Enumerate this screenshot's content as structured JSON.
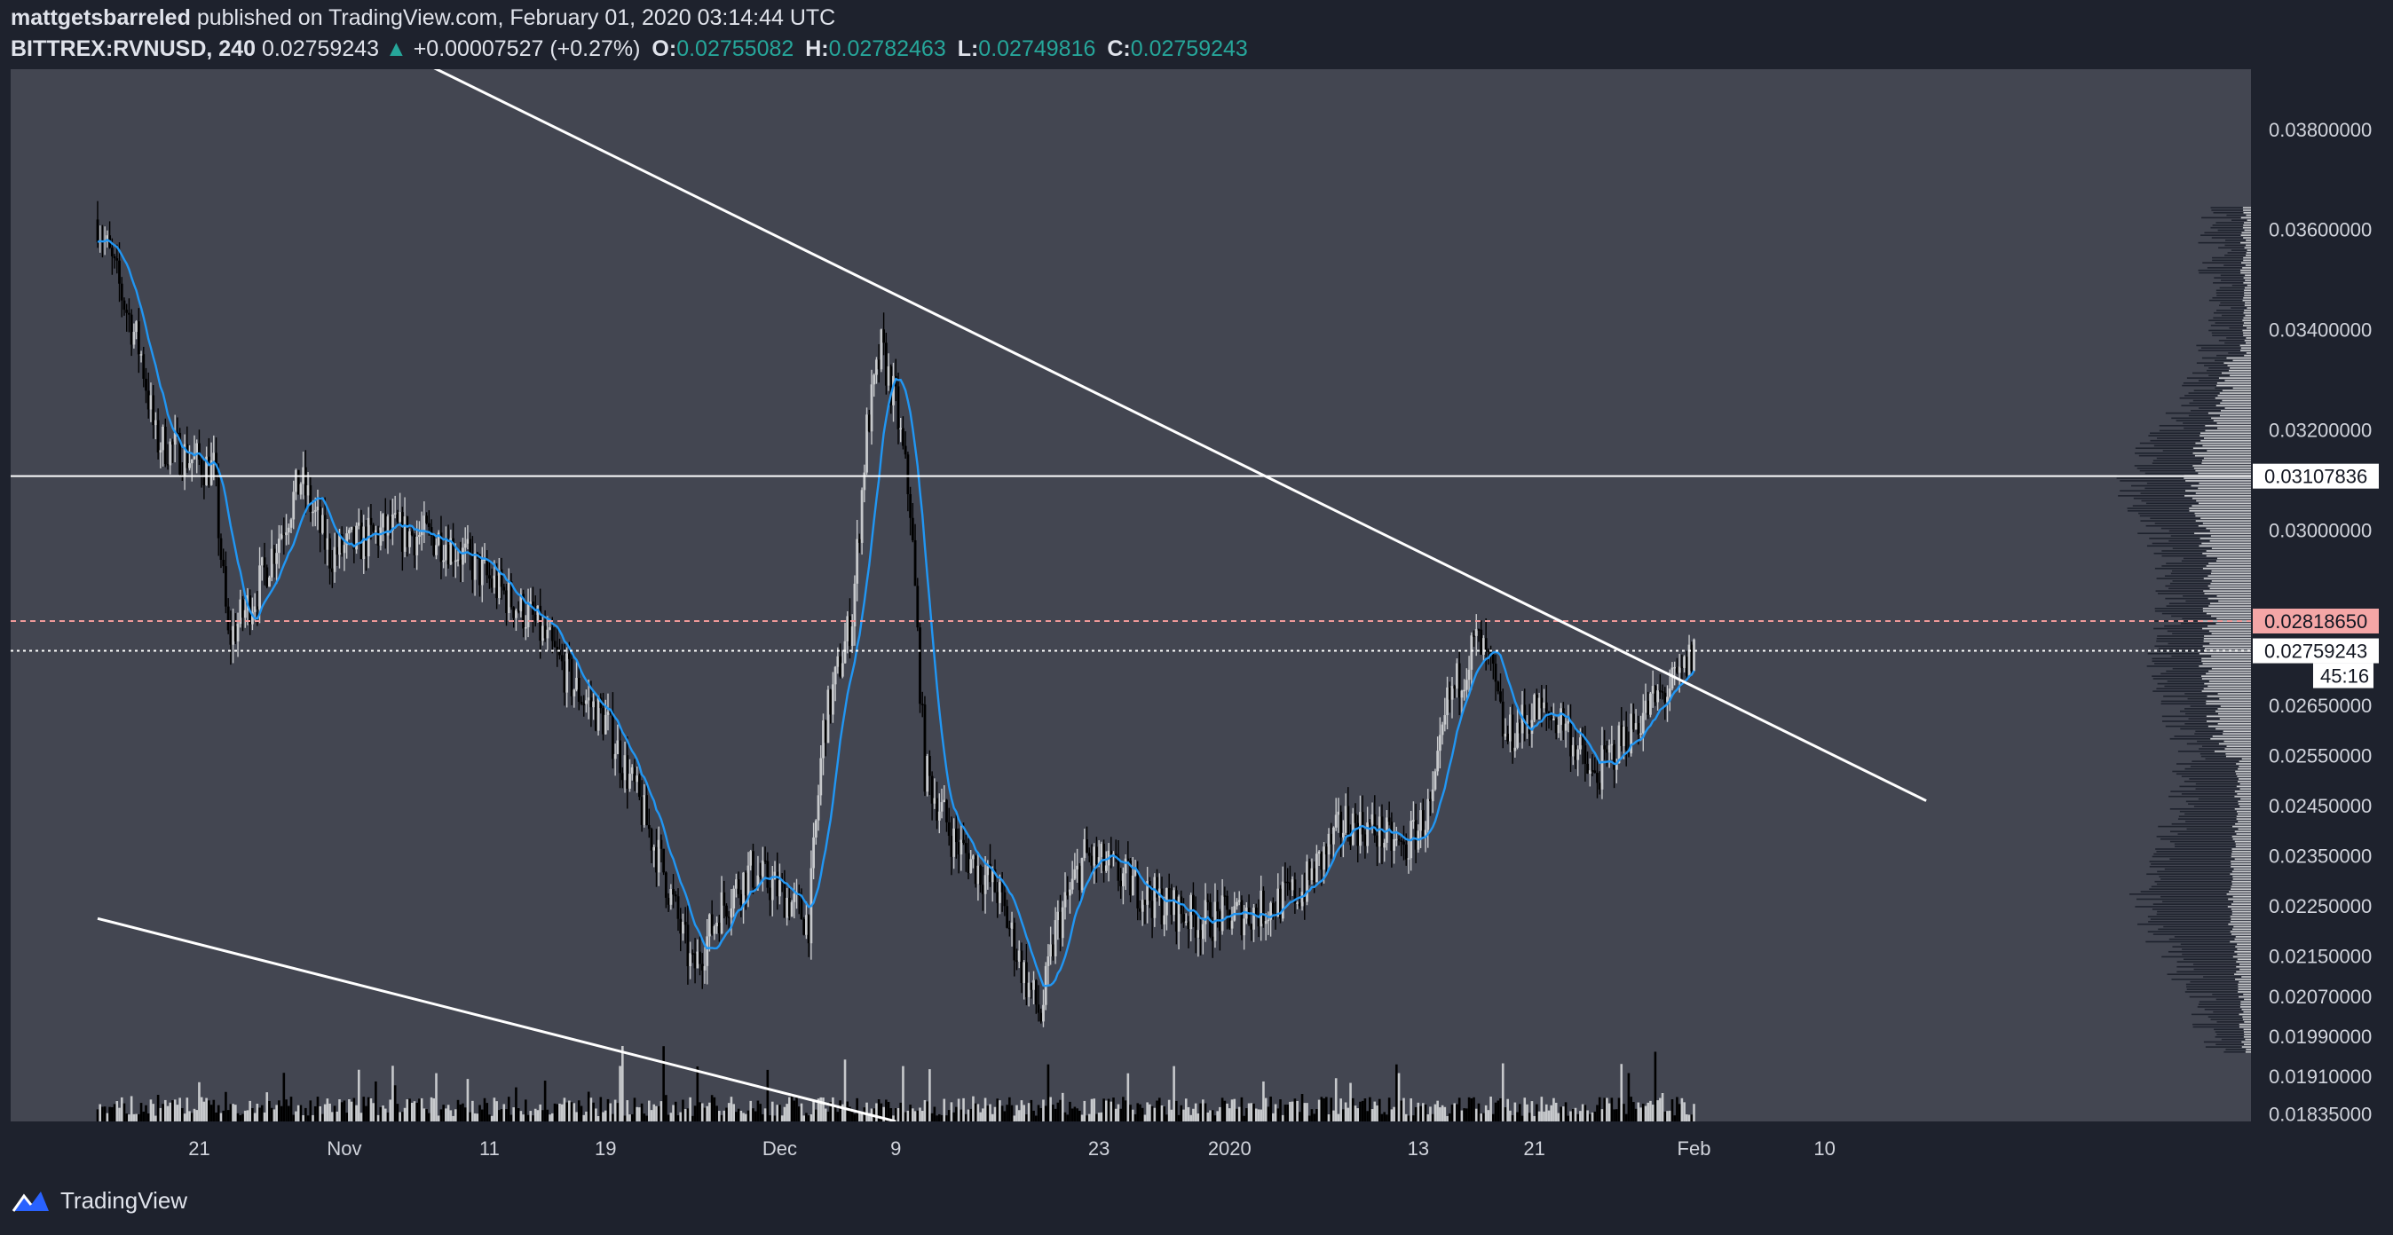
{
  "header": {
    "author": "mattgetsbarreled",
    "published_text": "published on TradingView.com, February 01, 2020 03:14:44 UTC",
    "symbol": "BITTREX:RVNUSD, 240",
    "last": "0.02759243",
    "arrow": "▲",
    "change": "+0.00007527 (+0.27%)",
    "o_label": "O:",
    "o_value": "0.02755082",
    "h_label": "H:",
    "h_value": "0.02782463",
    "l_label": "L:",
    "l_value": "0.02749816",
    "c_label": "C:",
    "c_value": "0.02759243"
  },
  "footer": {
    "brand": "TradingView"
  },
  "colors": {
    "pane_bg": "#434651",
    "outer_bg": "#1e222d",
    "ma_line": "#2196f3",
    "up_candle": "#c7c9cc",
    "down_candle": "#000000",
    "trendline": "#ffffff",
    "resistance_dashed": "#ef9a9a",
    "current_price_label": "#ffffff",
    "resistance_label_bg": "#f4a6a6"
  },
  "chart_data": {
    "type": "candlestick",
    "ylim": [
      0.0182,
      0.0392
    ],
    "xlim": [
      0,
      157
    ],
    "y_ticks": [
      "0.03800000",
      "0.03600000",
      "0.03400000",
      "0.03200000",
      "0.03000000",
      "0.02650000",
      "0.02550000",
      "0.02450000",
      "0.02350000",
      "0.02250000",
      "0.02150000",
      "0.02070000",
      "0.01990000",
      "0.01910000",
      "0.01835000"
    ],
    "y_tick_values": [
      0.038,
      0.036,
      0.034,
      0.032,
      0.03,
      0.0265,
      0.0255,
      0.0245,
      0.0235,
      0.0225,
      0.0215,
      0.0207,
      0.0199,
      0.0191,
      0.01835
    ],
    "x_ticks": [
      {
        "label": "21",
        "day": 7
      },
      {
        "label": "Nov",
        "day": 17
      },
      {
        "label": "11",
        "day": 27
      },
      {
        "label": "19",
        "day": 35
      },
      {
        "label": "Dec",
        "day": 47
      },
      {
        "label": "9",
        "day": 55
      },
      {
        "label": "23",
        "day": 69
      },
      {
        "label": "2020",
        "day": 78
      },
      {
        "label": "13",
        "day": 91
      },
      {
        "label": "21",
        "day": 99
      },
      {
        "label": "Feb",
        "day": 110
      },
      {
        "label": "10",
        "day": 119
      }
    ],
    "price_labels": [
      {
        "value": 0.03107836,
        "text": "0.03107836",
        "style": "white"
      },
      {
        "value": 0.0281865,
        "text": "0.02818650",
        "style": "red"
      },
      {
        "value": 0.02759243,
        "text": "0.02759243",
        "style": "white"
      }
    ],
    "countdown": "45:16",
    "horizontal_lines": [
      {
        "value": 0.03107836,
        "style": "solid"
      },
      {
        "value": 0.0281865,
        "style": "dashed-red"
      },
      {
        "value": 0.02759243,
        "style": "dotted-white"
      }
    ],
    "trendlines": [
      {
        "from": [
          23,
          0.03925
        ],
        "to": [
          126,
          0.0246
        ]
      },
      {
        "from": [
          0,
          0.02225
        ],
        "to": [
          55,
          0.0182
        ]
      }
    ],
    "key_points": [
      {
        "day": 0,
        "price": 0.0362
      },
      {
        "day": 3,
        "price": 0.0335
      },
      {
        "day": 4,
        "price": 0.0318
      },
      {
        "day": 8,
        "price": 0.0312
      },
      {
        "day": 9,
        "price": 0.0278
      },
      {
        "day": 11,
        "price": 0.0288
      },
      {
        "day": 14,
        "price": 0.031
      },
      {
        "day": 16,
        "price": 0.0295
      },
      {
        "day": 20,
        "price": 0.03
      },
      {
        "day": 24,
        "price": 0.0298
      },
      {
        "day": 27,
        "price": 0.029
      },
      {
        "day": 30,
        "price": 0.0282
      },
      {
        "day": 33,
        "price": 0.0268
      },
      {
        "day": 35,
        "price": 0.0262
      },
      {
        "day": 37,
        "price": 0.0248
      },
      {
        "day": 39,
        "price": 0.0232
      },
      {
        "day": 41,
        "price": 0.0212
      },
      {
        "day": 43,
        "price": 0.0225
      },
      {
        "day": 45,
        "price": 0.0232
      },
      {
        "day": 47,
        "price": 0.0228
      },
      {
        "day": 49,
        "price": 0.0222
      },
      {
        "day": 50,
        "price": 0.026
      },
      {
        "day": 52,
        "price": 0.0283
      },
      {
        "day": 53,
        "price": 0.032
      },
      {
        "day": 54,
        "price": 0.0336
      },
      {
        "day": 55,
        "price": 0.0325
      },
      {
        "day": 56,
        "price": 0.0305
      },
      {
        "day": 57,
        "price": 0.0252
      },
      {
        "day": 59,
        "price": 0.0238
      },
      {
        "day": 62,
        "price": 0.0228
      },
      {
        "day": 64,
        "price": 0.021
      },
      {
        "day": 65,
        "price": 0.0203
      },
      {
        "day": 66,
        "price": 0.022
      },
      {
        "day": 68,
        "price": 0.0235
      },
      {
        "day": 70,
        "price": 0.0232
      },
      {
        "day": 73,
        "price": 0.0226
      },
      {
        "day": 76,
        "price": 0.0222
      },
      {
        "day": 80,
        "price": 0.0224
      },
      {
        "day": 83,
        "price": 0.0228
      },
      {
        "day": 86,
        "price": 0.0242
      },
      {
        "day": 88,
        "price": 0.024
      },
      {
        "day": 90,
        "price": 0.0236
      },
      {
        "day": 92,
        "price": 0.0245
      },
      {
        "day": 93,
        "price": 0.0265
      },
      {
        "day": 95,
        "price": 0.0278
      },
      {
        "day": 96,
        "price": 0.0272
      },
      {
        "day": 97,
        "price": 0.0258
      },
      {
        "day": 99,
        "price": 0.0264
      },
      {
        "day": 101,
        "price": 0.0262
      },
      {
        "day": 103,
        "price": 0.025
      },
      {
        "day": 105,
        "price": 0.0258
      },
      {
        "day": 107,
        "price": 0.0265
      },
      {
        "day": 109,
        "price": 0.027
      },
      {
        "day": 110,
        "price": 0.0276
      }
    ]
  }
}
